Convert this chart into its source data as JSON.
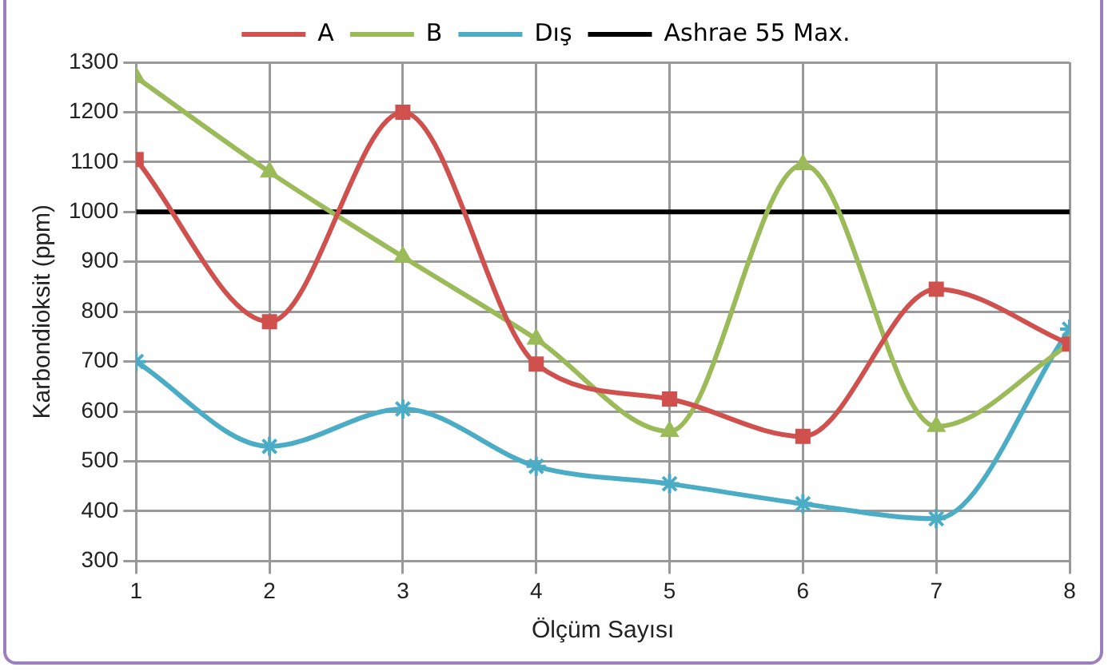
{
  "chart_data": {
    "type": "line",
    "xlabel": "Ölçüm Sayısı",
    "ylabel": "Karbondioksit (ppm)",
    "x": [
      1,
      2,
      3,
      4,
      5,
      6,
      7,
      8
    ],
    "series": [
      {
        "name": "A",
        "color": "#d0504d",
        "marker": "square",
        "values": [
          1105,
          780,
          1200,
          695,
          625,
          550,
          845,
          735
        ]
      },
      {
        "name": "B",
        "color": "#9bbb59",
        "marker": "triangle",
        "values": [
          1270,
          1080,
          910,
          745,
          560,
          1095,
          570,
          735
        ]
      },
      {
        "name": "Dış",
        "color": "#4bacc6",
        "marker": "cross",
        "values": [
          700,
          530,
          605,
          490,
          455,
          415,
          385,
          765
        ]
      }
    ],
    "ref_lines": [
      {
        "axis": "y",
        "value": 1000,
        "label": "Ashrae 55 Max.",
        "color": "#000000"
      }
    ],
    "xlim": [
      1,
      8
    ],
    "xticks": [
      1,
      2,
      3,
      4,
      5,
      6,
      7,
      8
    ],
    "ylim": [
      300,
      1300
    ],
    "yticks": [
      300,
      400,
      500,
      600,
      700,
      800,
      900,
      1000,
      1100,
      1200,
      1300
    ],
    "grid": true,
    "legend": "top"
  }
}
